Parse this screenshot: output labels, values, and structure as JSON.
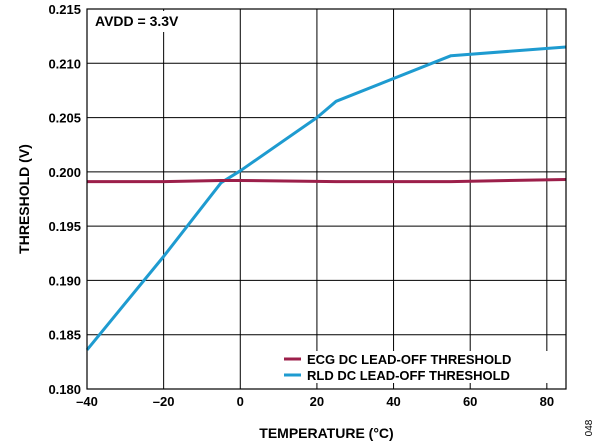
{
  "chart_data": {
    "type": "line",
    "xlabel": "TEMPERATURE (°C)",
    "ylabel": "THRESHOLD (V)",
    "xlim": [
      -40,
      85
    ],
    "ylim": [
      0.18,
      0.215
    ],
    "xticks": [
      -40,
      -20,
      0,
      20,
      40,
      60,
      80
    ],
    "xtick_labels": [
      "–40",
      "–20",
      "0",
      "20",
      "40",
      "60",
      "80"
    ],
    "yticks": [
      0.18,
      0.185,
      0.19,
      0.195,
      0.2,
      0.205,
      0.21,
      0.215
    ],
    "ytick_labels": [
      "0.180",
      "0.185",
      "0.190",
      "0.195",
      "0.200",
      "0.205",
      "0.210",
      "0.215"
    ],
    "grid": true,
    "legend_position": "bottom-right",
    "annotation": "AVDD = 3.3V",
    "figure_code": "048",
    "series": [
      {
        "name": "ECG DC LEAD-OFF THRESHOLD",
        "color": "#9c1f4a",
        "x": [
          -40,
          -20,
          -5,
          0,
          25,
          55,
          85
        ],
        "y": [
          0.1991,
          0.1991,
          0.1992,
          0.1992,
          0.1991,
          0.1991,
          0.1993
        ]
      },
      {
        "name": "RLD DC LEAD-OFF THRESHOLD",
        "color": "#1e9bd0",
        "x": [
          -40,
          -20,
          -5,
          0,
          20,
          25,
          55,
          85
        ],
        "y": [
          0.1836,
          0.1922,
          0.199,
          0.2001,
          0.205,
          0.2065,
          0.2107,
          0.2115
        ]
      }
    ]
  }
}
